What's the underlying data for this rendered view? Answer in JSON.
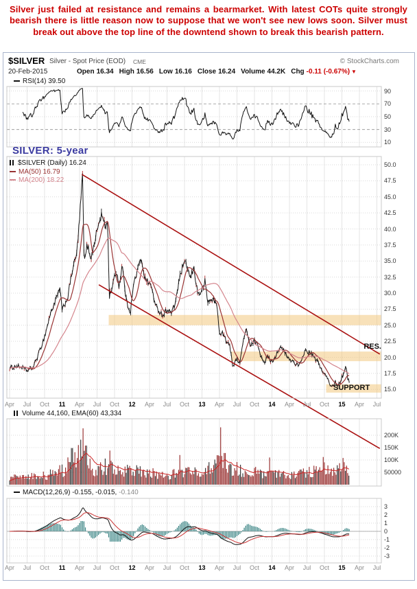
{
  "commentary": "Silver just failed at resistance and remains a bearmarket. With latest COTs quite strongly bearish there is little reason now to suppose that we won't see new lows soon. Silver must break out above the top line of the downtend shown to break this bearish pattern.",
  "header": {
    "symbol": "$SILVER",
    "description": "Silver - Spot Price (EOD)",
    "exchange": "CME",
    "copyright": "© StockCharts.com",
    "date": "20-Feb-2015",
    "quote": {
      "open_label": "Open",
      "open": "16.34",
      "high_label": "High",
      "high": "16.56",
      "low_label": "Low",
      "low": "16.16",
      "close_label": "Close",
      "close": "16.24",
      "volume_label": "Volume",
      "volume": "44.2K",
      "chg_label": "Chg",
      "chg": "-0.11 (-0.67%)",
      "chg_arrow": "▼"
    }
  },
  "subtitle": "SILVER: 5-year",
  "labels": {
    "rsi": "RSI(14) 39.50",
    "price_main": "$SILVER (Daily) 16.24",
    "ma50": "MA(50) 16.79",
    "ma200": "MA(200) 18.22",
    "volume": "Volume 44,160, EMA(60) 43,334",
    "macd": "MACD(12,26,9) -0.155, -0.015,",
    "macd_hist": "-0.140",
    "res": "RES.",
    "support": "SUPPORT"
  },
  "colors": {
    "accent_red": "#cc0000",
    "annotation_blue": "#3a3aa0",
    "price_line": "#161616",
    "ma50": "#993333",
    "ma200": "#d4848c",
    "trendline": "#aa1111",
    "band": "#f3c87f",
    "volume_bar": "#993333",
    "volume_bar_dark": "#3a3a3a",
    "volume_ema": "#cc2222",
    "macd_line": "#111111",
    "macd_signal": "#cc3333",
    "macd_hist": "#2f7d7d",
    "rsi_line": "#111111",
    "grid": "#d9d9d9",
    "grid_vert": "#e4e4e4",
    "panel_border": "#c8c8c8"
  },
  "scales": {
    "rsi": [
      90,
      70,
      50,
      30,
      10
    ],
    "price": [
      "50.0",
      "47.5",
      "45.0",
      "42.5",
      "40.0",
      "37.5",
      "35.0",
      "32.5",
      "30.0",
      "27.5",
      "25.0",
      "22.5",
      "20.0",
      "17.5",
      "15.0"
    ],
    "volume": [
      {
        "t": "200K",
        "v": 200
      },
      {
        "t": "150K",
        "v": 150
      },
      {
        "t": "100K",
        "v": 100
      },
      {
        "t": "50000",
        "v": 50
      }
    ],
    "macd": [
      3,
      2,
      1,
      0,
      -1,
      -2,
      -3
    ]
  },
  "x_ticks": [
    {
      "m": 0,
      "t": "Apr"
    },
    {
      "m": 3,
      "t": "Jul"
    },
    {
      "m": 6,
      "t": "Oct"
    },
    {
      "m": 9,
      "t": "11",
      "year": true
    },
    {
      "m": 12,
      "t": "Apr"
    },
    {
      "m": 15,
      "t": "Jul"
    },
    {
      "m": 18,
      "t": "Oct"
    },
    {
      "m": 21,
      "t": "12",
      "year": true
    },
    {
      "m": 24,
      "t": "Apr"
    },
    {
      "m": 27,
      "t": "Jul"
    },
    {
      "m": 30,
      "t": "Oct"
    },
    {
      "m": 33,
      "t": "13",
      "year": true
    },
    {
      "m": 36,
      "t": "Apr"
    },
    {
      "m": 39,
      "t": "Jul"
    },
    {
      "m": 42,
      "t": "Oct"
    },
    {
      "m": 45,
      "t": "14",
      "year": true
    },
    {
      "m": 48,
      "t": "Apr"
    },
    {
      "m": 51,
      "t": "Jul"
    },
    {
      "m": 54,
      "t": "Oct"
    },
    {
      "m": 57,
      "t": "15",
      "year": true
    },
    {
      "m": 60,
      "t": "Apr"
    },
    {
      "m": 63,
      "t": "Jul"
    }
  ],
  "chart_data": {
    "type": "line",
    "title": "$SILVER Silver - Spot Price (EOD) CME",
    "subtitle": "SILVER: 5-year",
    "x_unit": "months since Apr-2010",
    "x_range": [
      0,
      63.5
    ],
    "ohlc_last": {
      "date": "20-Feb-2015",
      "open": 16.34,
      "high": 16.56,
      "low": 16.16,
      "close": 16.24,
      "volume": "44.2K",
      "chg": "-0.11 (-0.67%)"
    },
    "panels": [
      {
        "name": "RSI",
        "type": "line",
        "indicator": "RSI(14)",
        "last": 39.5,
        "ylim": [
          0,
          100
        ],
        "yticks": [
          90,
          70,
          50,
          30,
          10
        ],
        "reference_lines": [
          70,
          30
        ],
        "note": "oscillates mostly 25-80 around 50 across the 5 years"
      },
      {
        "name": "price",
        "type": "line",
        "last": 16.24,
        "ma50": 16.79,
        "ma200": 18.22,
        "ylim": [
          15,
          50
        ],
        "yticks": [
          50,
          47.5,
          45,
          42.5,
          40,
          37.5,
          35,
          32.5,
          30,
          27.5,
          25,
          22.5,
          20,
          17.5,
          15
        ],
        "series": [
          {
            "name": "$SILVER",
            "x": [
              0,
              1,
              2,
              3,
              4,
              5,
              6,
              7,
              8,
              8.7,
              9,
              10,
              10.8,
              11.5,
              12,
              12.5,
              12.8,
              13.3,
              14,
              15,
              15.8,
              16.4,
              16.8,
              17.1,
              17.6,
              18.3,
              18.8,
              19.3,
              20,
              20.7,
              21.3,
              22,
              22.6,
              23.2,
              24,
              24.5,
              25,
              25.6,
              26.3,
              27,
              27.7,
              28.3,
              29,
              29.7,
              30.3,
              31,
              31.6,
              32.3,
              33,
              33.5,
              34,
              34.8,
              35.5,
              36.1,
              36.6,
              37.2,
              37.8,
              38.3,
              39,
              39.5,
              40.2,
              40.7,
              41.3,
              42,
              42.6,
              43.2,
              43.8,
              44.3,
              45,
              45.6,
              46.2,
              46.8,
              47.3,
              47.8,
              48.4,
              49,
              49.5,
              50,
              50.6,
              51.2,
              51.8,
              52.3,
              52.8,
              53.3,
              53.8,
              54.3,
              54.8,
              55.3,
              55.8,
              56.3,
              56.7,
              57.2,
              57.6,
              58,
              58.35
            ],
            "values": [
              18.3,
              18.6,
              18.5,
              17.9,
              18.4,
              20.6,
              23.2,
              26.8,
              29.2,
              30.7,
              27.2,
              29.5,
              33.8,
              36.0,
              41.5,
              48.4,
              34.5,
              37.5,
              35.5,
              39.8,
              42.3,
              40.2,
              41.5,
              29.5,
              31.0,
              33.5,
              31.0,
              34.5,
              28.9,
              27.0,
              31.5,
              33.8,
              35.5,
              32.2,
              31.5,
              30.5,
              28.0,
              27.3,
              26.5,
              27.5,
              26.9,
              28.0,
              31.5,
              34.3,
              34.6,
              32.2,
              34.0,
              29.8,
              30.3,
              31.8,
              28.6,
              29.1,
              28.3,
              23.4,
              23.8,
              22.3,
              21.8,
              18.6,
              19.7,
              19.3,
              23.2,
              24.3,
              21.6,
              22.5,
              21.9,
              20.0,
              19.3,
              20.1,
              19.3,
              20.2,
              21.4,
              21.3,
              20.6,
              19.8,
              19.5,
              19.1,
              18.7,
              19.1,
              21.1,
              20.8,
              20.5,
              19.8,
              19.4,
              18.6,
              17.4,
              17.2,
              16.0,
              15.4,
              16.2,
              15.6,
              16.3,
              17.3,
              18.6,
              16.8,
              16.24
            ]
          }
        ],
        "overlays": [
          {
            "name": "MA(50)",
            "last": 16.79
          },
          {
            "name": "MA(200)",
            "last": 18.22
          }
        ],
        "annotations": {
          "trendlines": [
            {
              "x1": 12.4,
              "y1": 48.5,
              "x2": 63.5,
              "y2": 20.5
            },
            {
              "x1": 15.3,
              "y1": 31.3,
              "x2": 63.5,
              "y2": 5.8
            }
          ],
          "bands": [
            {
              "label": "",
              "from": 17,
              "price_low": 25.0,
              "price_high": 26.6
            },
            {
              "label": "RES.",
              "from": 38,
              "price_low": 19.4,
              "price_high": 20.9
            },
            {
              "label": "SUPPORT",
              "from": 54.3,
              "price_low": 14.5,
              "price_high": 15.8
            }
          ]
        }
      },
      {
        "name": "volume",
        "type": "bar",
        "last": 44160,
        "ema60": 43334,
        "yticks_labels": [
          "200K",
          "150K",
          "100K",
          "50000"
        ],
        "x": [
          0,
          3,
          6,
          8,
          9,
          10,
          11,
          12,
          13,
          14,
          15,
          17,
          18,
          21,
          24,
          27,
          30,
          33,
          36,
          38,
          40,
          44,
          48,
          51,
          54,
          56,
          57,
          58.3
        ],
        "values": [
          28,
          32,
          36,
          48,
          58,
          75,
          95,
          115,
          92,
          70,
          62,
          82,
          66,
          55,
          46,
          40,
          50,
          46,
          95,
          72,
          56,
          45,
          40,
          46,
          62,
          50,
          70,
          52
        ],
        "spikes": [
          {
            "x": 10.7,
            "v": 148
          },
          {
            "x": 12.2,
            "v": 182
          },
          {
            "x": 12.55,
            "v": 228
          },
          {
            "x": 13.1,
            "v": 158
          },
          {
            "x": 17.25,
            "v": 138
          },
          {
            "x": 29.2,
            "v": 120
          },
          {
            "x": 36.15,
            "v": 232
          },
          {
            "x": 36.9,
            "v": 128
          },
          {
            "x": 44.6,
            "v": 110
          },
          {
            "x": 53.8,
            "v": 112
          },
          {
            "x": 57.2,
            "v": 108
          }
        ]
      },
      {
        "name": "MACD",
        "type": "line",
        "indicator": "MACD(12,26,9)",
        "last_values": [
          -0.155,
          -0.015,
          -0.14
        ],
        "ylim": [
          -3,
          3
        ],
        "yticks": [
          3,
          2,
          1,
          0,
          -1,
          -2,
          -3
        ],
        "histogram": true
      }
    ]
  }
}
